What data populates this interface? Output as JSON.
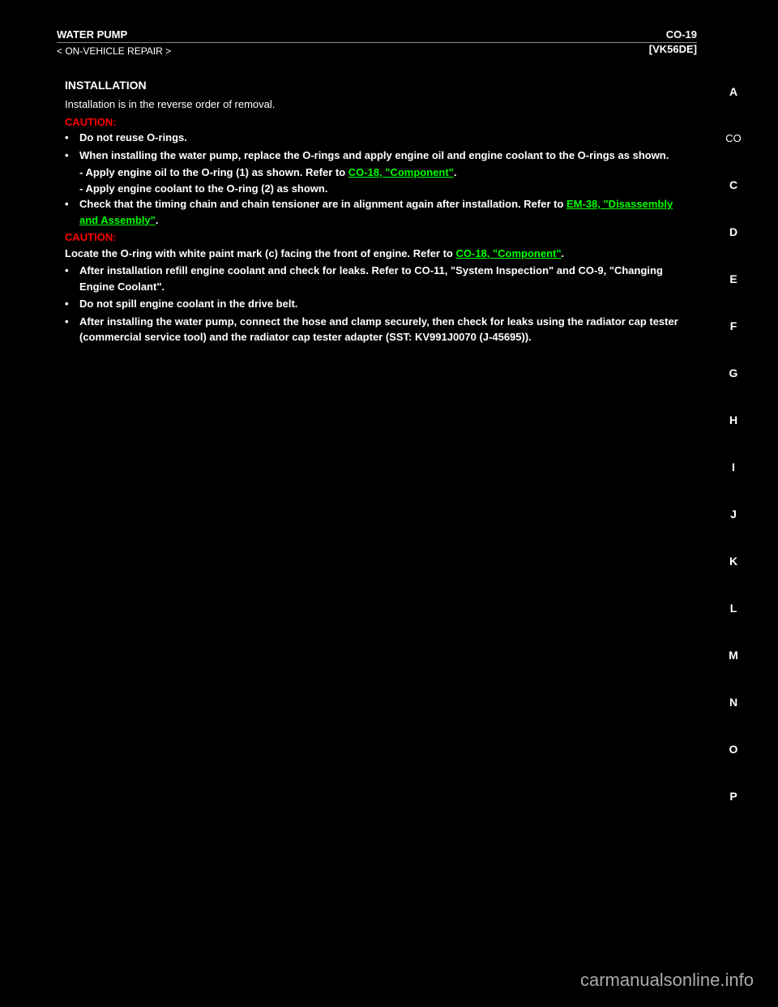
{
  "header": {
    "title": "WATER PUMP",
    "ref": "[VK56DE]",
    "page_num": "CO-19",
    "subtitle": "< ON-VEHICLE REPAIR >"
  },
  "sidebar": {
    "letters": [
      "A",
      "CO",
      "C",
      "D",
      "E",
      "F",
      "G",
      "H",
      "I",
      "J",
      "K",
      "L",
      "M",
      "N",
      "O",
      "P"
    ]
  },
  "content": {
    "install_heading": "INSTALLATION",
    "intro": "Installation is in the reverse order of removal.",
    "caution_label": "CAUTION:",
    "bullets": [
      "Do not reuse O-rings.",
      "When installing the water pump, replace the O-rings and apply engine oil and engine coolant to the O-rings as shown."
    ],
    "sub_bullets": [
      {
        "prefix": "- Apply engine oil to the O-ring (1) as shown. Refer to ",
        "link": "CO-18, \"Component\"",
        "suffix": "."
      },
      {
        "prefix": "- Apply engine coolant to the O-ring (2) as shown.",
        "link": "",
        "suffix": ""
      }
    ],
    "bullets2": [
      {
        "prefix": "Check that the timing chain and chain tensioner are in alignment again after installation. Refer to ",
        "link": "EM-38, \"Disassembly and Assembly\"",
        "suffix": "."
      }
    ],
    "caution2_label": "CAUTION:",
    "caution2_text_prefix": "Locate the O-ring with white paint mark (c) facing the front of engine. Refer to ",
    "caution2_link": "CO-18, \"Component\"",
    "caution2_suffix": ".",
    "bullets3": [
      "After installation refill engine coolant and check for leaks. Refer to CO-11, \"System Inspection\" and CO-9, \"Changing Engine Coolant\".",
      "Do not spill engine coolant in the drive belt.",
      "After installing the water pump, connect the hose and clamp securely, then check for leaks using the radiator cap tester (commercial service tool) and the radiator cap tester adapter (SST: KV991J0070 (J-45695))."
    ]
  },
  "watermark": "carmanualsonline.info",
  "colors": {
    "bg": "#000000",
    "text": "#ffffff",
    "caution": "#ff0000",
    "link": "#00ff00",
    "watermark": "#aaaaaa"
  }
}
